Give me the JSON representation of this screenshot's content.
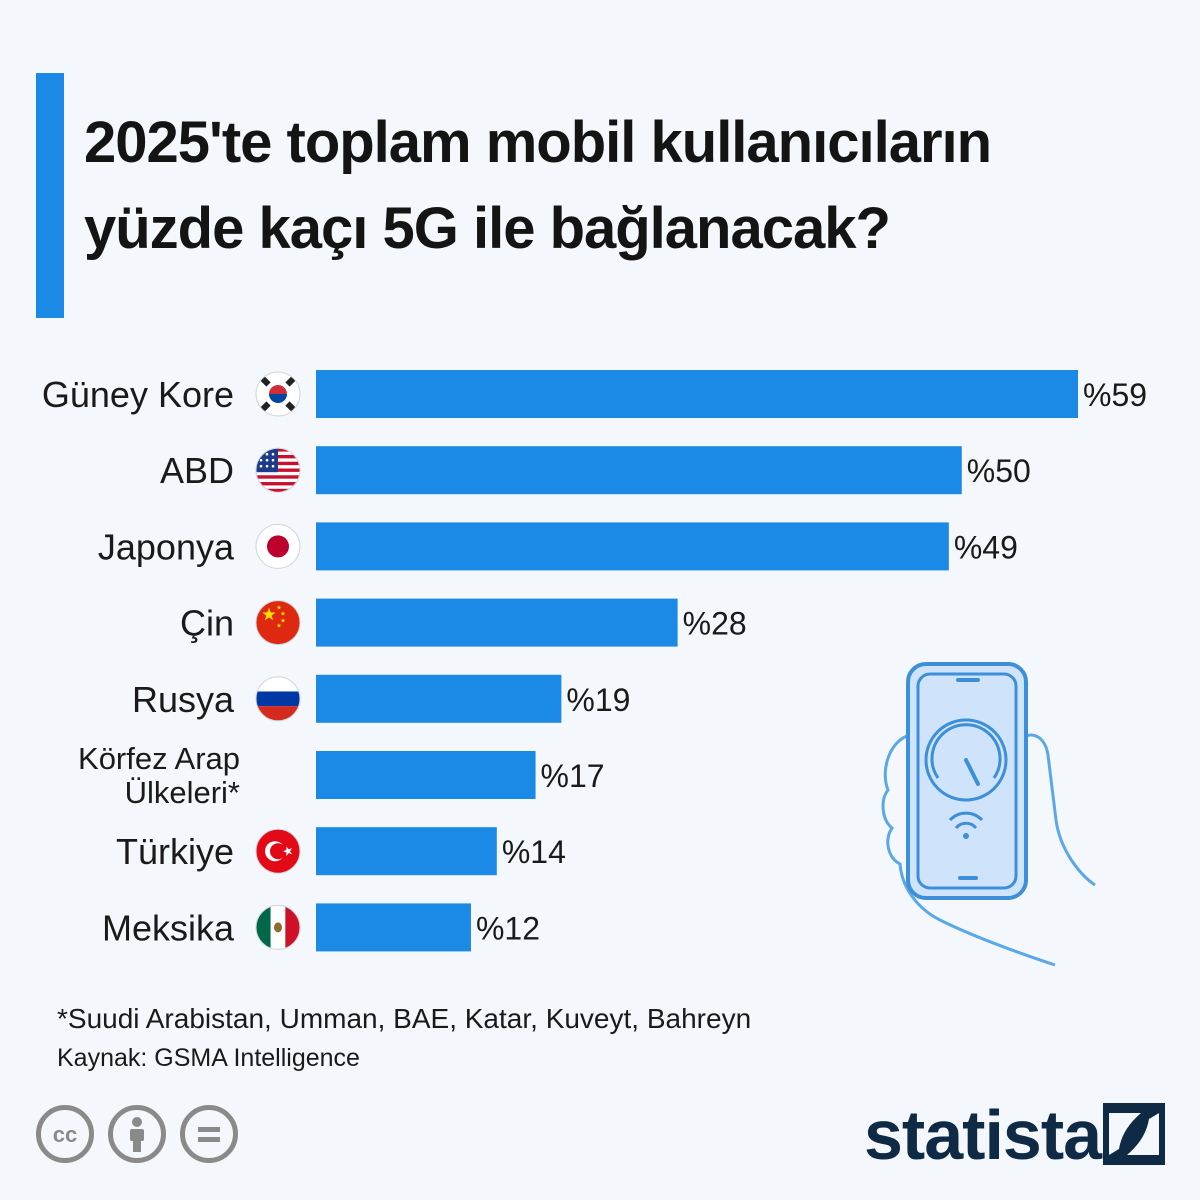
{
  "title_line1": "2025'te toplam mobil kullanıcıların",
  "title_line2": "yüzde kaçı 5G ile bağlanacak?",
  "colors": {
    "accent": "#1a8ae6",
    "bar": "#1a8ae6",
    "text": "#1a1a1a",
    "logo": "#0f2a44"
  },
  "chart_data": {
    "type": "bar",
    "orientation": "horizontal",
    "categories": [
      {
        "label": "Güney Kore",
        "flag": "south-korea-flag"
      },
      {
        "label": "ABD",
        "flag": "usa-flag"
      },
      {
        "label": "Japonya",
        "flag": "japan-flag"
      },
      {
        "label": "Çin",
        "flag": "china-flag"
      },
      {
        "label": "Rusya",
        "flag": "russia-flag"
      },
      {
        "label": "Körfez Arap\nÜlkeleri*",
        "flag": ""
      },
      {
        "label": "Türkiye",
        "flag": "turkey-flag"
      },
      {
        "label": "Meksika",
        "flag": "mexico-flag"
      }
    ],
    "values": [
      59,
      50,
      49,
      28,
      19,
      17,
      14,
      12
    ],
    "value_labels": [
      "%59",
      "%50",
      "%49",
      "%28",
      "%19",
      "%17",
      "%14",
      "%12"
    ],
    "unit": "%",
    "xlim": [
      0,
      59
    ],
    "grid": false,
    "legend": "none"
  },
  "footnote": "*Suudi Arabistan, Umman, BAE, Katar, Kuveyt, Bahreyn",
  "source": "Kaynak: GSMA Intelligence",
  "license_icons": [
    "cc-icon",
    "attribution-icon",
    "no-derivatives-icon"
  ],
  "logo": {
    "text": "statista",
    "icon": "statista-logo-icon"
  },
  "illustration": "phone-speedometer-icon"
}
